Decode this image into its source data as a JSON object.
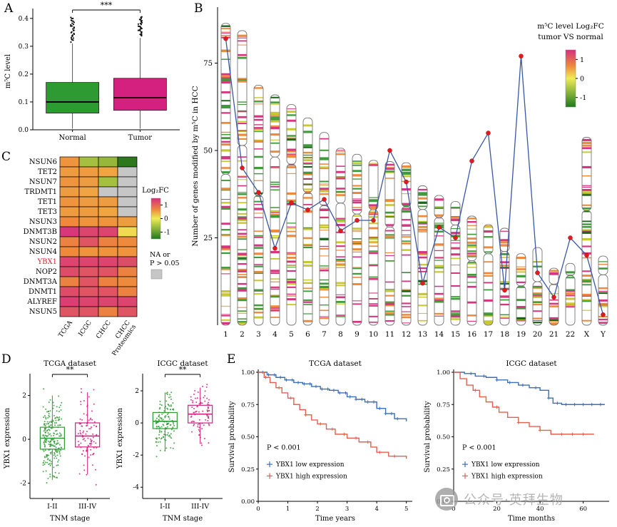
{
  "figure": {
    "labels": {
      "A": "A",
      "B": "B",
      "C": "C",
      "D": "D",
      "E": "E"
    }
  },
  "watermark": {
    "text": "公众号·英拜生物",
    "icon": "camera-icon"
  },
  "colors": {
    "normal_green": "#2e9b32",
    "tumor_magenta": "#d4217f",
    "km_blue": "#3b6fb6",
    "km_red": "#e4604e",
    "line_blue": "#3a57a7",
    "point_red": "#e41a1c",
    "na_gray": "#c6c6c6"
  },
  "chart_data": [
    {
      "id": "panelA",
      "type": "box",
      "panel": "A",
      "ylabel": "m⁵C level",
      "ylim": [
        0,
        0.42
      ],
      "yticks": [
        0,
        0.1,
        0.2,
        0.3,
        0.4
      ],
      "significance": "***",
      "boxes": [
        {
          "label": "Normal",
          "color": "#2e9b32",
          "q1": 0.06,
          "median": 0.1,
          "q3": 0.17,
          "whisker_low": 0.004,
          "whisker_high": 0.31,
          "outlier_range": [
            0.315,
            0.405
          ]
        },
        {
          "label": "Tumor",
          "color": "#d4217f",
          "q1": 0.07,
          "median": 0.115,
          "q3": 0.185,
          "whisker_low": 0.004,
          "whisker_high": 0.33,
          "outlier_range": [
            0.335,
            0.405
          ]
        }
      ]
    },
    {
      "id": "panelB",
      "type": "line",
      "panel": "B",
      "ylabel": "Number of genes modified by m⁵C in HCC",
      "yticks": [
        25,
        50,
        75
      ],
      "categories": [
        "1",
        "2",
        "3",
        "4",
        "5",
        "6",
        "7",
        "8",
        "9",
        "10",
        "11",
        "12",
        "13",
        "14",
        "15",
        "16",
        "17",
        "18",
        "19",
        "20",
        "21",
        "22",
        "X",
        "Y"
      ],
      "values": [
        82,
        45,
        38,
        22,
        35,
        33,
        36,
        27,
        30,
        30,
        50,
        41,
        12,
        28,
        25,
        47,
        55,
        10,
        77,
        15,
        8,
        25,
        20,
        3
      ],
      "line_color": "#3a57a7",
      "point_color": "#e41a1c",
      "chromosomes": {
        "rel_lengths": [
          249,
          243,
          198,
          190,
          182,
          171,
          159,
          146,
          141,
          136,
          135,
          134,
          115,
          107,
          102,
          90,
          83,
          80,
          59,
          64,
          47,
          51,
          155,
          57
        ],
        "centromere_frac": [
          0.5,
          0.39,
          0.46,
          0.27,
          0.27,
          0.36,
          0.38,
          0.31,
          0.35,
          0.3,
          0.4,
          0.27,
          0.17,
          0.17,
          0.19,
          0.41,
          0.29,
          0.24,
          0.45,
          0.44,
          0.28,
          0.2,
          0.39,
          0.27
        ],
        "band_colors": [
          "#d6357f",
          "#ee8a3c",
          "#3f9a3a",
          "#c8c832",
          "#1a661a"
        ]
      },
      "legend": {
        "title": "m⁵C level Log₂FC",
        "subtitle": "tumor VS normal",
        "ticks": [
          1,
          0,
          -1
        ]
      }
    },
    {
      "id": "panelC",
      "type": "heatmap",
      "panel": "C",
      "rows": [
        "NSUN6",
        "TET2",
        "NSUN7",
        "TRDMT1",
        "TET1",
        "TET3",
        "NSUN3",
        "DNMT3B",
        "NSUN2",
        "NSUN4",
        "YBX1",
        "NOP2",
        "DNMT3A",
        "DNMT1",
        "ALYREF",
        "NSUN5"
      ],
      "highlight_row": "YBX1",
      "highlight_color": "#e8192c",
      "cols": [
        "TCGA",
        "ICGC",
        "CHCC",
        "CHCC\nProteomics"
      ],
      "values": [
        [
          0.5,
          -0.5,
          -0.6,
          -1.3
        ],
        [
          0.45,
          0.45,
          0.4,
          null
        ],
        [
          0.5,
          0.45,
          -0.5,
          null
        ],
        [
          0.45,
          0.4,
          null,
          null
        ],
        [
          0.5,
          0.45,
          0.45,
          null
        ],
        [
          0.45,
          0.45,
          0.4,
          null
        ],
        [
          0.55,
          0.5,
          0.5,
          0.45
        ],
        [
          1.1,
          1.0,
          1.0,
          0.1
        ],
        [
          0.6,
          0.9,
          0.6,
          0.55
        ],
        [
          0.55,
          0.5,
          0.5,
          0.5
        ],
        [
          1.0,
          1.0,
          1.0,
          0.95
        ],
        [
          0.95,
          0.9,
          0.9,
          0.6
        ],
        [
          0.6,
          0.9,
          0.6,
          0.55
        ],
        [
          0.95,
          0.9,
          0.9,
          0.6
        ],
        [
          1.05,
          1.0,
          1.0,
          1.0
        ],
        [
          0.9,
          0.9,
          0.6,
          0.9
        ]
      ],
      "legend": {
        "title": "Log₂FC",
        "ticks": [
          1,
          0,
          -1
        ],
        "na_label_line1": "NA or",
        "na_label_line2": "P > 0.05",
        "na_color": "#c6c6c6"
      }
    },
    {
      "id": "panelD1",
      "type": "box-jitter",
      "panel": "D",
      "seed": 11,
      "title": "TCGA dataset",
      "ylabel": "YBX1 expression",
      "xlabel": "TNM stage",
      "ylim": [
        -2.7,
        2.8
      ],
      "yticks": [
        -2,
        0,
        2
      ],
      "significance": "**",
      "groups": [
        {
          "label": "I-II",
          "color": "#2e9b32",
          "n": 230,
          "median": 0.05,
          "q1": -0.45,
          "q3": 0.55,
          "whisker_low": -1.85,
          "whisker_high": 2.0,
          "jitter_sd": 0.8,
          "clip": [
            -2.45,
            2.3
          ]
        },
        {
          "label": "III-IV",
          "color": "#d4217f",
          "n": 95,
          "median": 0.15,
          "q1": -0.35,
          "q3": 0.75,
          "whisker_low": -1.6,
          "whisker_high": 2.15,
          "jitter_sd": 0.85,
          "clip": [
            -2.2,
            2.4
          ]
        }
      ]
    },
    {
      "id": "panelD2",
      "type": "box-jitter",
      "panel": "D",
      "seed": 23,
      "title": "ICGC dataset",
      "ylabel": "YBX1 expression",
      "xlabel": "TNM stage",
      "ylim": [
        -4.7,
        2.8
      ],
      "yticks": [
        -4,
        -2,
        0,
        2
      ],
      "significance": "**",
      "groups": [
        {
          "label": "I-II",
          "color": "#2e9b32",
          "n": 130,
          "median": 0.1,
          "q1": -0.35,
          "q3": 0.65,
          "whisker_low": -1.75,
          "whisker_high": 1.9,
          "jitter_sd": 0.85,
          "clip": [
            -4.3,
            1.9
          ]
        },
        {
          "label": "III-IV",
          "color": "#d4217f",
          "n": 85,
          "median": 0.55,
          "q1": 0.0,
          "q3": 1.1,
          "whisker_low": -1.3,
          "whisker_high": 2.2,
          "jitter_sd": 0.85,
          "clip": [
            -1.9,
            2.4
          ]
        }
      ]
    },
    {
      "id": "panelE1",
      "type": "km",
      "panel": "E",
      "title": "TCGA dataset",
      "xlabel": "Time years",
      "ylabel": "Survival probability",
      "xlim": [
        0,
        5.2
      ],
      "xticks": [
        0,
        1,
        2,
        3,
        4,
        5
      ],
      "yticks": [
        0,
        0.25,
        0.5,
        0.75,
        1.0
      ],
      "pvalue": "P < 0.001",
      "series": [
        {
          "name": "YBX1 low expression",
          "color": "#3b6fb6",
          "points": [
            [
              0,
              1.0
            ],
            [
              0.3,
              0.98
            ],
            [
              0.6,
              0.96
            ],
            [
              0.9,
              0.94
            ],
            [
              1.2,
              0.92
            ],
            [
              1.5,
              0.91
            ],
            [
              1.8,
              0.89
            ],
            [
              2.1,
              0.87
            ],
            [
              2.4,
              0.86
            ],
            [
              2.7,
              0.84
            ],
            [
              3.0,
              0.81
            ],
            [
              3.3,
              0.79
            ],
            [
              3.6,
              0.77
            ],
            [
              4.0,
              0.72
            ],
            [
              4.3,
              0.68
            ],
            [
              4.6,
              0.64
            ],
            [
              5.0,
              0.62
            ]
          ],
          "censors": [
            0.15,
            0.35,
            0.55,
            0.75,
            0.95,
            1.15,
            1.35,
            1.55,
            1.75,
            1.95,
            2.15,
            2.35,
            2.55,
            2.75,
            2.95,
            3.1,
            3.3,
            3.5,
            3.7,
            3.9,
            4.1,
            4.3,
            4.5,
            4.7
          ]
        },
        {
          "name": "YBX1 high expression",
          "color": "#e4604e",
          "points": [
            [
              0,
              1.0
            ],
            [
              0.2,
              0.96
            ],
            [
              0.4,
              0.92
            ],
            [
              0.6,
              0.88
            ],
            [
              0.8,
              0.84
            ],
            [
              1.0,
              0.8
            ],
            [
              1.2,
              0.75
            ],
            [
              1.4,
              0.71
            ],
            [
              1.6,
              0.67
            ],
            [
              1.8,
              0.63
            ],
            [
              2.0,
              0.6
            ],
            [
              2.3,
              0.56
            ],
            [
              2.6,
              0.52
            ],
            [
              3.0,
              0.49
            ],
            [
              3.4,
              0.46
            ],
            [
              3.8,
              0.42
            ],
            [
              4.0,
              0.38
            ],
            [
              4.4,
              0.35
            ],
            [
              5.0,
              0.33
            ]
          ],
          "censors": [
            0.25,
            0.7,
            1.1,
            1.6,
            2.1,
            2.5,
            2.9,
            3.3,
            3.7,
            4.1,
            4.6
          ]
        }
      ]
    },
    {
      "id": "panelE2",
      "type": "km",
      "panel": "E",
      "title": "ICGC dataset",
      "xlabel": "Time months",
      "ylabel": "Survival probability",
      "xlim": [
        0,
        72
      ],
      "xticks": [
        0,
        20,
        40,
        60
      ],
      "yticks": [
        0,
        0.25,
        0.5,
        0.75,
        1.0
      ],
      "pvalue": "P < 0.001",
      "series": [
        {
          "name": "YBX1 low expression",
          "color": "#3b6fb6",
          "points": [
            [
              0,
              1.0
            ],
            [
              5,
              0.99
            ],
            [
              10,
              0.97
            ],
            [
              15,
              0.96
            ],
            [
              20,
              0.94
            ],
            [
              25,
              0.92
            ],
            [
              30,
              0.9
            ],
            [
              35,
              0.88
            ],
            [
              40,
              0.86
            ],
            [
              44,
              0.8
            ],
            [
              46,
              0.76
            ],
            [
              50,
              0.75
            ],
            [
              70,
              0.75
            ]
          ],
          "censors": [
            8,
            14,
            20,
            26,
            32,
            38,
            44,
            48,
            52,
            56,
            60,
            64,
            68
          ]
        },
        {
          "name": "YBX1 high expression",
          "color": "#e4604e",
          "points": [
            [
              0,
              1.0
            ],
            [
              3,
              0.95
            ],
            [
              6,
              0.9
            ],
            [
              9,
              0.86
            ],
            [
              12,
              0.81
            ],
            [
              15,
              0.77
            ],
            [
              18,
              0.73
            ],
            [
              21,
              0.69
            ],
            [
              25,
              0.65
            ],
            [
              30,
              0.61
            ],
            [
              35,
              0.58
            ],
            [
              40,
              0.55
            ],
            [
              45,
              0.52
            ],
            [
              65,
              0.52
            ]
          ],
          "censors": [
            10,
            20,
            30,
            40,
            50,
            55,
            60
          ]
        }
      ]
    }
  ]
}
